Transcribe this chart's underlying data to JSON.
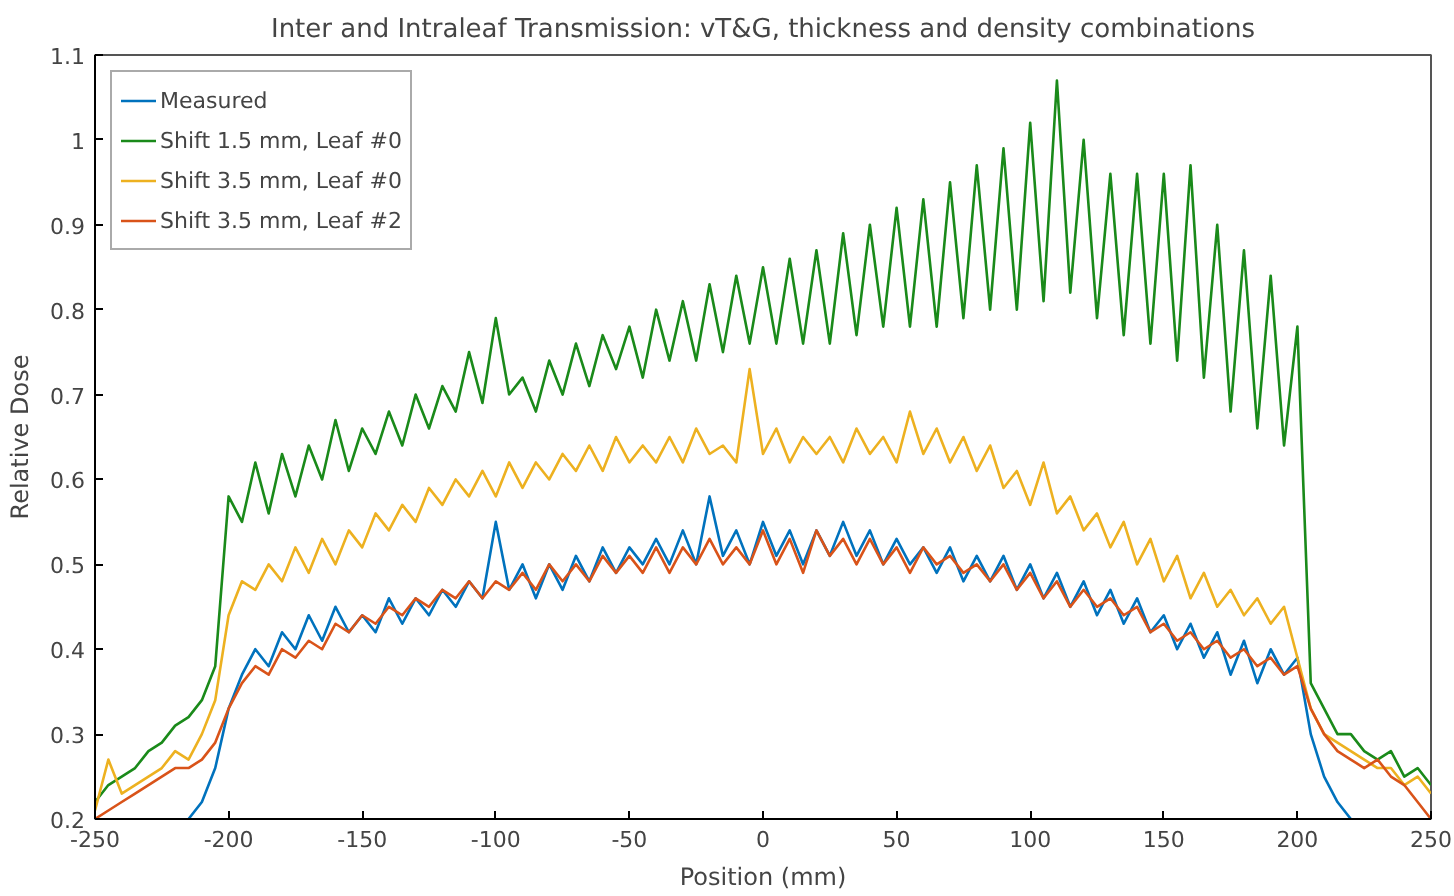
{
  "chart_data": {
    "type": "line",
    "title": "Inter and Intraleaf Transmission: vT&G, thickness and density combinations",
    "xlabel": "Position (mm)",
    "ylabel": "Relative Dose",
    "x": [
      -250,
      -245,
      -240,
      -235,
      -230,
      -225,
      -220,
      -215,
      -210,
      -205,
      -200,
      -195,
      -190,
      -185,
      -180,
      -175,
      -170,
      -165,
      -160,
      -155,
      -150,
      -145,
      -140,
      -135,
      -130,
      -125,
      -120,
      -115,
      -110,
      -105,
      -100,
      -95,
      -90,
      -85,
      -80,
      -75,
      -70,
      -65,
      -60,
      -55,
      -50,
      -45,
      -40,
      -35,
      -30,
      -25,
      -20,
      -15,
      -10,
      -5,
      0,
      5,
      10,
      15,
      20,
      25,
      30,
      35,
      40,
      45,
      50,
      55,
      60,
      65,
      70,
      75,
      80,
      85,
      90,
      95,
      100,
      105,
      110,
      115,
      120,
      125,
      130,
      135,
      140,
      145,
      150,
      155,
      160,
      165,
      170,
      175,
      180,
      185,
      190,
      195,
      200,
      205,
      210,
      215,
      220,
      225,
      230,
      235,
      240,
      245,
      250
    ],
    "xlim": [
      -250,
      250
    ],
    "ylim": [
      0.2,
      1.1
    ],
    "xticks": [
      -250,
      -200,
      -150,
      -100,
      -50,
      0,
      50,
      100,
      150,
      200,
      250
    ],
    "yticks": [
      0.2,
      0.3,
      0.4,
      0.5,
      0.6,
      0.7,
      0.8,
      0.9,
      1,
      1.1
    ],
    "grid": false,
    "legend": "top left",
    "line_style": "solid",
    "series": [
      {
        "name": "Measured",
        "color": "#0072bd",
        "values": [
          null,
          null,
          null,
          null,
          null,
          null,
          null,
          0.2,
          0.22,
          0.26,
          0.33,
          0.37,
          0.4,
          0.38,
          0.42,
          0.4,
          0.44,
          0.41,
          0.45,
          0.42,
          0.44,
          0.42,
          0.46,
          0.43,
          0.46,
          0.44,
          0.47,
          0.45,
          0.48,
          0.46,
          0.55,
          0.47,
          0.5,
          0.46,
          0.5,
          0.47,
          0.51,
          0.48,
          0.52,
          0.49,
          0.52,
          0.5,
          0.53,
          0.5,
          0.54,
          0.5,
          0.58,
          0.51,
          0.54,
          0.5,
          0.55,
          0.51,
          0.54,
          0.5,
          0.54,
          0.51,
          0.55,
          0.51,
          0.54,
          0.5,
          0.53,
          0.5,
          0.52,
          0.49,
          0.52,
          0.48,
          0.51,
          0.48,
          0.51,
          0.47,
          0.5,
          0.46,
          0.49,
          0.45,
          0.48,
          0.44,
          0.47,
          0.43,
          0.46,
          0.42,
          0.44,
          0.4,
          0.43,
          0.39,
          0.42,
          0.37,
          0.41,
          0.36,
          0.4,
          0.37,
          0.39,
          0.3,
          0.25,
          0.22,
          0.2,
          null,
          null,
          null,
          null,
          null,
          null
        ]
      },
      {
        "name": "Shift 1.5 mm, Leaf #0",
        "color": "#1a8a1a",
        "values": [
          0.22,
          0.24,
          0.25,
          0.26,
          0.28,
          0.29,
          0.31,
          0.32,
          0.34,
          0.38,
          0.58,
          0.55,
          0.62,
          0.56,
          0.63,
          0.58,
          0.64,
          0.6,
          0.67,
          0.61,
          0.66,
          0.63,
          0.68,
          0.64,
          0.7,
          0.66,
          0.71,
          0.68,
          0.75,
          0.69,
          0.79,
          0.7,
          0.72,
          0.68,
          0.74,
          0.7,
          0.76,
          0.71,
          0.77,
          0.73,
          0.78,
          0.72,
          0.8,
          0.74,
          0.81,
          0.74,
          0.83,
          0.75,
          0.84,
          0.76,
          0.85,
          0.76,
          0.86,
          0.76,
          0.87,
          0.76,
          0.89,
          0.77,
          0.9,
          0.78,
          0.92,
          0.78,
          0.93,
          0.78,
          0.95,
          0.79,
          0.97,
          0.8,
          0.99,
          0.8,
          1.02,
          0.81,
          1.07,
          0.82,
          1.0,
          0.79,
          0.96,
          0.77,
          0.96,
          0.76,
          0.96,
          0.74,
          0.97,
          0.72,
          0.9,
          0.68,
          0.87,
          0.66,
          0.84,
          0.64,
          0.78,
          0.36,
          0.33,
          0.3,
          0.3,
          0.28,
          0.27,
          0.28,
          0.25,
          0.26,
          0.24
        ]
      },
      {
        "name": "Shift 3.5 mm, Leaf #0",
        "color": "#edb120",
        "values": [
          0.21,
          0.27,
          0.23,
          0.24,
          0.25,
          0.26,
          0.28,
          0.27,
          0.3,
          0.34,
          0.44,
          0.48,
          0.47,
          0.5,
          0.48,
          0.52,
          0.49,
          0.53,
          0.5,
          0.54,
          0.52,
          0.56,
          0.54,
          0.57,
          0.55,
          0.59,
          0.57,
          0.6,
          0.58,
          0.61,
          0.58,
          0.62,
          0.59,
          0.62,
          0.6,
          0.63,
          0.61,
          0.64,
          0.61,
          0.65,
          0.62,
          0.64,
          0.62,
          0.65,
          0.62,
          0.66,
          0.63,
          0.64,
          0.62,
          0.73,
          0.63,
          0.66,
          0.62,
          0.65,
          0.63,
          0.65,
          0.62,
          0.66,
          0.63,
          0.65,
          0.62,
          0.68,
          0.63,
          0.66,
          0.62,
          0.65,
          0.61,
          0.64,
          0.59,
          0.61,
          0.57,
          0.62,
          0.56,
          0.58,
          0.54,
          0.56,
          0.52,
          0.55,
          0.5,
          0.53,
          0.48,
          0.51,
          0.46,
          0.49,
          0.45,
          0.47,
          0.44,
          0.46,
          0.43,
          0.45,
          0.39,
          0.33,
          0.3,
          0.29,
          0.28,
          0.27,
          0.26,
          0.26,
          0.24,
          0.25,
          0.23
        ]
      },
      {
        "name": "Shift 3.5 mm, Leaf #2",
        "color": "#d95319",
        "values": [
          0.2,
          0.21,
          0.22,
          0.23,
          0.24,
          0.25,
          0.26,
          0.26,
          0.27,
          0.29,
          0.33,
          0.36,
          0.38,
          0.37,
          0.4,
          0.39,
          0.41,
          0.4,
          0.43,
          0.42,
          0.44,
          0.43,
          0.45,
          0.44,
          0.46,
          0.45,
          0.47,
          0.46,
          0.48,
          0.46,
          0.48,
          0.47,
          0.49,
          0.47,
          0.5,
          0.48,
          0.5,
          0.48,
          0.51,
          0.49,
          0.51,
          0.49,
          0.52,
          0.49,
          0.52,
          0.5,
          0.53,
          0.5,
          0.52,
          0.5,
          0.54,
          0.5,
          0.53,
          0.49,
          0.54,
          0.51,
          0.53,
          0.5,
          0.53,
          0.5,
          0.52,
          0.49,
          0.52,
          0.5,
          0.51,
          0.49,
          0.5,
          0.48,
          0.5,
          0.47,
          0.49,
          0.46,
          0.48,
          0.45,
          0.47,
          0.45,
          0.46,
          0.44,
          0.45,
          0.42,
          0.43,
          0.41,
          0.42,
          0.4,
          0.41,
          0.39,
          0.4,
          0.38,
          0.39,
          0.37,
          0.38,
          0.33,
          0.3,
          0.28,
          0.27,
          0.26,
          0.27,
          0.25,
          0.24,
          0.22,
          0.2
        ]
      }
    ]
  }
}
